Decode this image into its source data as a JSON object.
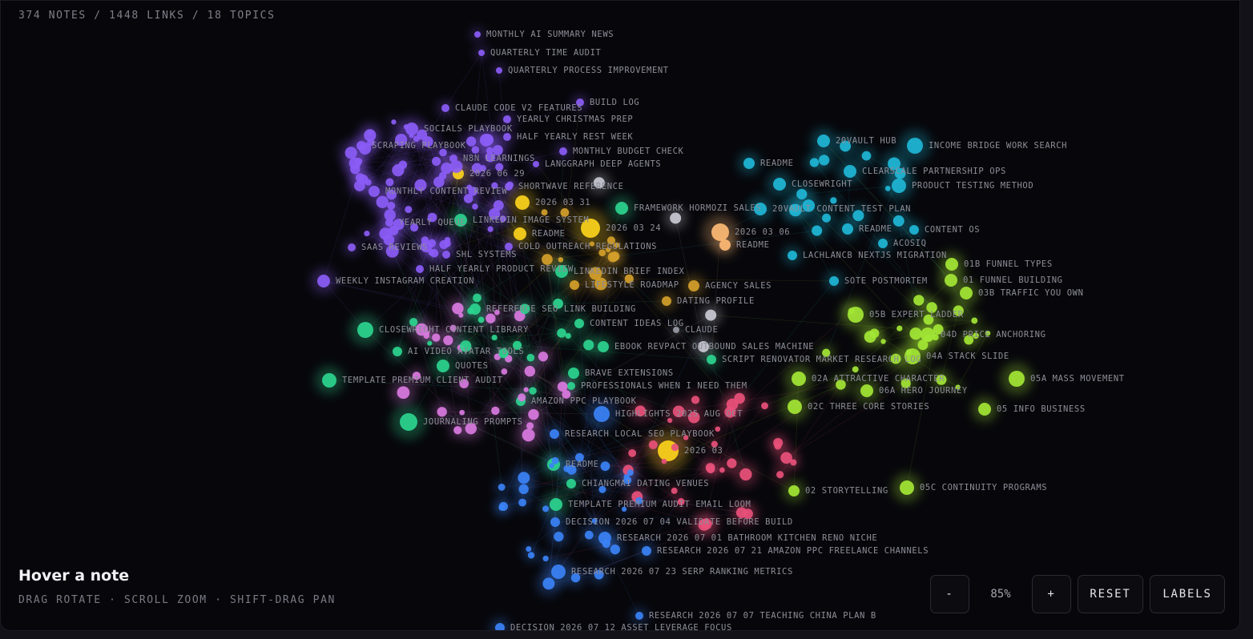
{
  "header": {
    "stats": "374 NOTES / 1448 LINKS / 18 TOPICS"
  },
  "nodes": [
    {
      "label": "MONTHLY AI SUMMARY NEWS"
    },
    {
      "label": "QUARTERLY TIME AUDIT"
    },
    {
      "label": "QUARTERLY PROCESS IMPROVEMENT"
    },
    {
      "label": "CLAUDE CODE V2 FEATURES"
    },
    {
      "label": "BUILD LOG"
    },
    {
      "label": "YEARLY CHRISTMAS PREP"
    },
    {
      "label": "SOCIALS PLAYBOOK"
    },
    {
      "label": "HALF YEARLY REST WEEK"
    },
    {
      "label": "SCRAPING PLAYBOOK"
    },
    {
      "label": "MONTHLY BUDGET CHECK"
    },
    {
      "label": "N8N LEARNINGS"
    },
    {
      "label": "LANGGRAPH DEEP AGENTS"
    },
    {
      "label": "2026 06 29"
    },
    {
      "label": "SHORTWAVE REFERENCE"
    },
    {
      "label": "MONTHLY CONTENT REVIEW"
    },
    {
      "label": "2026 03 31"
    },
    {
      "label": "FRAMEWORK HORMOZI SALES"
    },
    {
      "label": "YEARLY QUEUE"
    },
    {
      "label": "LINKEDIN IMAGE SYSTEM"
    },
    {
      "label": "2026 03 24"
    },
    {
      "label": "README"
    },
    {
      "label": "SAAS REVIEWS"
    },
    {
      "label": "COLD OUTREACH REGULATIONS"
    },
    {
      "label": "SHL SYSTEMS"
    },
    {
      "label": "HALF YEARLY PRODUCT REVIEW"
    },
    {
      "label": "LINKEDIN BRIEF INDEX"
    },
    {
      "label": "WEEKLY INSTAGRAM CREATION"
    },
    {
      "label": "LIFESTYLE ROADMAP"
    },
    {
      "label": "AGENCY SALES"
    },
    {
      "label": "DATING PROFILE"
    },
    {
      "label": "REFERENCE SEO LINK BUILDING"
    },
    {
      "label": "CONTENT IDEAS LOG"
    },
    {
      "label": "CLOSEWRIGHT CONTENT LIBRARY"
    },
    {
      "label": "CLAUDE"
    },
    {
      "label": "EBOOK REVPACT OUTBOUND SALES MACHINE"
    },
    {
      "label": "AI VIDEO AVATAR TOOLS"
    },
    {
      "label": "SCRIPT RENOVATOR MARKET RESEARCH LOG"
    },
    {
      "label": "QUOTES"
    },
    {
      "label": "BRAVE EXTENSIONS"
    },
    {
      "label": "TEMPLATE PREMIUM CLIENT AUDIT"
    },
    {
      "label": "PROFESSIONALS WHEN I NEED THEM"
    },
    {
      "label": "AMAZON PPC PLAYBOOK"
    },
    {
      "label": "HIGHLIGHTS 2025 AUG OCT"
    },
    {
      "label": "JOURNALING PROMPTS"
    },
    {
      "label": "RESEARCH LOCAL SEO PLAYBOOK"
    },
    {
      "label": "2026 03"
    },
    {
      "label": "README"
    },
    {
      "label": "CHIANGMAI DATING VENUES"
    },
    {
      "label": "TEMPLATE PREMIUM AUDIT EMAIL LOOM"
    },
    {
      "label": "DECISION 2026 07 04 VALIDATE BEFORE BUILD"
    },
    {
      "label": "RESEARCH 2026 07 01 BATHROOM KITCHEN RENO NICHE"
    },
    {
      "label": "RESEARCH 2026 07 21 AMAZON PPC FREELANCE CHANNELS"
    },
    {
      "label": "RESEARCH 2026 07 23 SERP RANKING METRICS"
    },
    {
      "label": "RESEARCH 2026 07 07 TEACHING CHINA PLAN B"
    },
    {
      "label": "DECISION 2026 07 12 ASSET LEVERAGE FOCUS"
    },
    {
      "label": "20VAULT HUB"
    },
    {
      "label": "INCOME BRIDGE WORK SEARCH"
    },
    {
      "label": "README"
    },
    {
      "label": "CLEARSCALE PARTNERSHIP OPS"
    },
    {
      "label": "CLOSEWRIGHT"
    },
    {
      "label": "PRODUCT TESTING METHOD"
    },
    {
      "label": "20VAULT CONTENT TEST PLAN"
    },
    {
      "label": "2026 03 06"
    },
    {
      "label": "README"
    },
    {
      "label": "README"
    },
    {
      "label": "CONTENT OS"
    },
    {
      "label": "ACOSIQ"
    },
    {
      "label": "LACHLANCB NEXTJS MIGRATION"
    },
    {
      "label": "SOTE POSTMORTEM"
    },
    {
      "label": "01B FUNNEL TYPES"
    },
    {
      "label": "01 FUNNEL BUILDING"
    },
    {
      "label": "03B TRAFFIC YOU OWN"
    },
    {
      "label": "05B EXPERT LADDER"
    },
    {
      "label": "04D PRICE ANCHORING"
    },
    {
      "label": "04A STACK SLIDE"
    },
    {
      "label": "02A ATTRACTIVE CHARACTER"
    },
    {
      "label": "05A MASS MOVEMENT"
    },
    {
      "label": "06A HERO JOURNEY"
    },
    {
      "label": "02C THREE CORE STORIES"
    },
    {
      "label": "05 INFO BUSINESS"
    },
    {
      "label": "02 STORYTELLING"
    },
    {
      "label": "05C CONTINUITY PROGRAMS"
    }
  ],
  "hover": {
    "title": "Hover a note",
    "hint": "DRAG ROTATE · SCROLL ZOOM · SHIFT-DRAG PAN"
  },
  "controls": {
    "zoom_out": "-",
    "zoom": "85%",
    "zoom_in": "+",
    "reset": "RESET",
    "labels": "LABELS"
  }
}
